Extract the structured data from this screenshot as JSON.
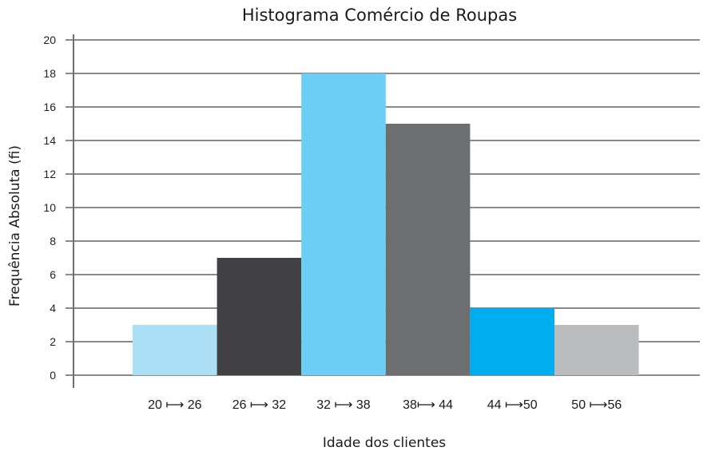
{
  "chart_data": {
    "type": "bar",
    "title": "Histograma Comércio de Roupas",
    "xlabel": "Idade dos clientes",
    "ylabel": "Frequência Absoluta (fi)",
    "categories": [
      "20 ⟼ 26",
      "26 ⟼ 32",
      "32 ⟼ 38",
      "38⟼ 44",
      "44 ⟼50",
      "50 ⟼56"
    ],
    "values": [
      3,
      7,
      18,
      15,
      4,
      3
    ],
    "colors": [
      "#abdff6",
      "#414143",
      "#6ccdf5",
      "#6d6e70",
      "#00aeef",
      "#bbbcbe"
    ],
    "ylim": [
      0,
      20
    ],
    "yticks": [
      0,
      2,
      4,
      6,
      8,
      10,
      12,
      14,
      16,
      18,
      20
    ],
    "grid": true,
    "legend": "none"
  }
}
